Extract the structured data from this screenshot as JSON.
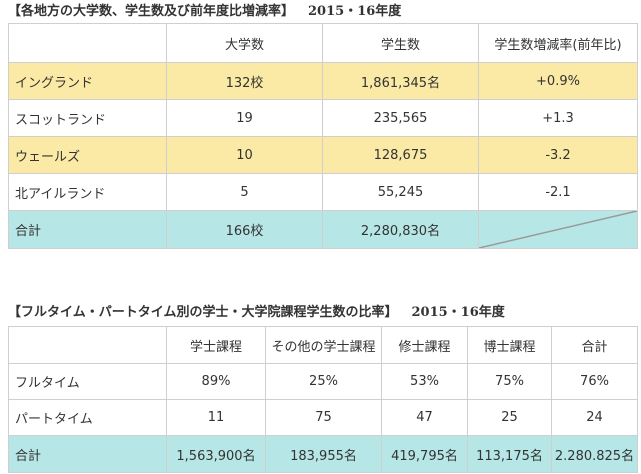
{
  "section1": {
    "title": "【各地方の大学数、学生数及び前年度比増減率】",
    "year": "2015・16年度",
    "headers": [
      "",
      "大学数",
      "学生数",
      "学生数増減率(前年比)"
    ],
    "rows": [
      {
        "region": "イングランド",
        "universities": "132校",
        "students": "1,861,345名",
        "change": "+0.9%"
      },
      {
        "region": "スコットランド",
        "universities": "19",
        "students": "235,565",
        "change": "+1.3"
      },
      {
        "region": "ウェールズ",
        "universities": "10",
        "students": "128,675",
        "change": "-3.2"
      },
      {
        "region": "北アイルランド",
        "universities": "5",
        "students": "55,245",
        "change": "-2.1"
      }
    ],
    "total": {
      "label": "合計",
      "universities": "166校",
      "students": "2,280,830名"
    }
  },
  "section2": {
    "title": "【フルタイム・パートタイム別の学士・大学院課程学生数の比率】",
    "year": "2015・16年度",
    "headers": [
      "",
      "学士課程",
      "その他の学士課程",
      "修士課程",
      "博士課程",
      "合計"
    ],
    "rows": [
      {
        "label": "フルタイム",
        "values": [
          "89%",
          "25%",
          "53%",
          "75%",
          "76%"
        ]
      },
      {
        "label": "パートタイム",
        "values": [
          "11",
          "75",
          "47",
          "25",
          "24"
        ]
      }
    ],
    "total": {
      "label": "合計",
      "values": [
        "1,563,900名",
        "183,955名",
        "419,795名",
        "113,175名",
        "2.280.825名"
      ]
    }
  },
  "colors": {
    "highlight_row": "#fbe9a6",
    "total_row": "#b7e6e6",
    "border": "#cfcfcf",
    "diagonal": "#9a9a9a"
  }
}
